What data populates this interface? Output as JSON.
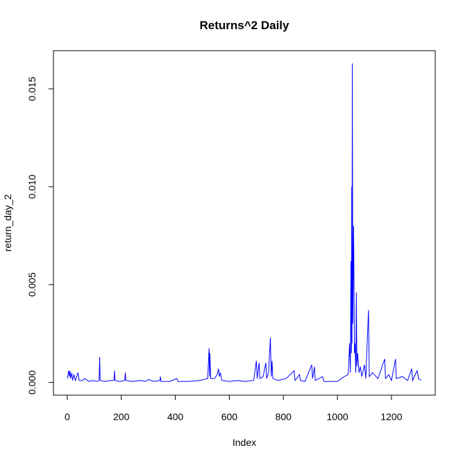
{
  "chart_data": {
    "type": "line",
    "title": "Returns^2 Daily",
    "x_label": "Index",
    "y_label": "return_day_2",
    "color": "#0000ff",
    "x": [
      1,
      5,
      8,
      10,
      13,
      17,
      20,
      25,
      30,
      35,
      40,
      44,
      55,
      65,
      80,
      95,
      110,
      118,
      120,
      122,
      140,
      160,
      173,
      175,
      177,
      195,
      213,
      215,
      217,
      240,
      270,
      290,
      300,
      320,
      343,
      345,
      347,
      380,
      405,
      410,
      450,
      490,
      520,
      525,
      527,
      528,
      531,
      545,
      555,
      560,
      563,
      567,
      572,
      600,
      630,
      660,
      690,
      700,
      703,
      710,
      713,
      725,
      735,
      738,
      745,
      752,
      755,
      758,
      761,
      780,
      810,
      840,
      843,
      860,
      863,
      880,
      905,
      908,
      915,
      918,
      945,
      950,
      1000,
      1025,
      1040,
      1045,
      1048,
      1050,
      1052,
      1053,
      1054,
      1055,
      1057,
      1060,
      1063,
      1065,
      1068,
      1070,
      1072,
      1075,
      1080,
      1085,
      1090,
      1100,
      1105,
      1115,
      1118,
      1130,
      1150,
      1175,
      1178,
      1190,
      1200,
      1215,
      1218,
      1240,
      1260,
      1275,
      1278,
      1295,
      1300,
      1310
    ],
    "values": [
      0.0002,
      0.0006,
      0.0003,
      0.0006,
      0.0002,
      0.0005,
      0.0001,
      0.0004,
      0.0001,
      0.0003,
      0.0005,
      0.0001,
      0.0001,
      0.0002,
      5e-05,
      0.0001,
      5e-05,
      0.0001,
      0.0013,
      0.0001,
      5e-05,
      0.0001,
      0.0001,
      0.0006,
      0.0001,
      5e-05,
      0.0001,
      0.0005,
      0.0001,
      5e-05,
      0.0001,
      5e-05,
      0.00015,
      5e-05,
      0.0001,
      0.0003,
      5e-05,
      5e-05,
      0.0002,
      5e-05,
      5e-05,
      0.0001,
      0.0002,
      0.00175,
      0.0003,
      0.0015,
      0.0002,
      0.0002,
      0.0004,
      0.0007,
      0.0003,
      0.0005,
      0.0001,
      5e-05,
      0.0001,
      5e-05,
      0.0001,
      0.0011,
      0.0002,
      0.001,
      0.0002,
      0.0003,
      0.001,
      0.0002,
      0.0005,
      0.0023,
      0.0003,
      0.0011,
      0.0002,
      0.0001,
      0.0002,
      0.0006,
      0.0001,
      0.0004,
      0.0001,
      5e-05,
      0.0009,
      0.0002,
      0.0008,
      0.0001,
      0.0003,
      5e-05,
      5e-05,
      0.0003,
      0.0004,
      0.002,
      0.0005,
      0.0062,
      0.0015,
      0.01,
      0.002,
      0.0163,
      0.003,
      0.008,
      0.0015,
      0.002,
      0.0005,
      0.0046,
      0.0008,
      0.0015,
      0.0005,
      0.0008,
      0.0003,
      0.0009,
      0.0002,
      0.0037,
      0.0003,
      0.0005,
      0.0002,
      0.0012,
      0.0002,
      0.0004,
      0.0001,
      0.0012,
      0.0002,
      0.0003,
      0.0001,
      0.0007,
      0.0001,
      0.0006,
      0.0002,
      0.0001
    ],
    "xlim": [
      -51,
      1362
    ],
    "ylim": [
      -0.00065,
      0.01695
    ],
    "xticks": [
      0,
      200,
      400,
      600,
      800,
      1000,
      1200
    ],
    "yticks": [
      {
        "value": 0,
        "label": "0.000"
      },
      0.005,
      {
        "value": 0.01,
        "label": "0.010"
      },
      0.015
    ]
  }
}
